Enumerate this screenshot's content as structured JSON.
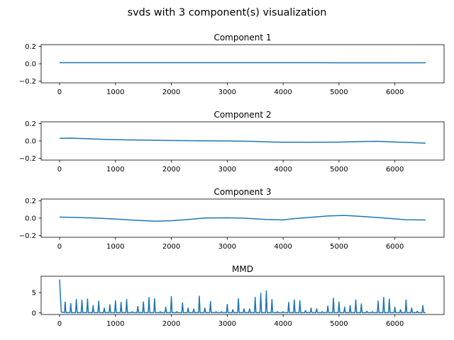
{
  "figure": {
    "title": "svds with 3 component(s) visualization",
    "line_color": "#1f77b4"
  },
  "chart_data": [
    {
      "type": "line",
      "title": "Component 1",
      "xlabel": "",
      "ylabel": "",
      "xlim": [
        -330,
        6880
      ],
      "ylim": [
        -0.22,
        0.22
      ],
      "xticks": [
        0,
        1000,
        2000,
        3000,
        4000,
        5000,
        6000
      ],
      "xtick_labels": [
        "0",
        "1000",
        "2000",
        "3000",
        "4000",
        "5000",
        "6000"
      ],
      "yticks": [
        0.2,
        0.0,
        -0.2
      ],
      "ytick_labels": [
        "0.2",
        "0.0",
        "−0.2"
      ],
      "grid": false,
      "series": [
        {
          "x": [
            0,
            500,
            1000,
            1500,
            2000,
            2500,
            3000,
            3500,
            4000,
            4500,
            5000,
            5500,
            6000,
            6550
          ],
          "values": [
            0.012,
            0.012,
            0.0125,
            0.0125,
            0.0125,
            0.0125,
            0.012,
            0.012,
            0.012,
            0.012,
            0.0115,
            0.0115,
            0.0115,
            0.0115
          ]
        }
      ]
    },
    {
      "type": "line",
      "title": "Component 2",
      "xlabel": "",
      "ylabel": "",
      "xlim": [
        -330,
        6880
      ],
      "ylim": [
        -0.22,
        0.22
      ],
      "xticks": [
        0,
        1000,
        2000,
        3000,
        4000,
        5000,
        6000
      ],
      "xtick_labels": [
        "0",
        "1000",
        "2000",
        "3000",
        "4000",
        "5000",
        "6000"
      ],
      "yticks": [
        0.2,
        0.0,
        -0.2
      ],
      "ytick_labels": [
        "0.2",
        "0.0",
        "−0.2"
      ],
      "grid": false,
      "series": [
        {
          "x": [
            0,
            200,
            500,
            800,
            1200,
            1500,
            2000,
            2500,
            3000,
            3500,
            3800,
            4000,
            4500,
            5000,
            5500,
            5700,
            6000,
            6300,
            6550
          ],
          "values": [
            0.03,
            0.033,
            0.025,
            0.018,
            0.012,
            0.01,
            0.005,
            0.002,
            0.0,
            -0.005,
            -0.012,
            -0.014,
            -0.015,
            -0.013,
            -0.005,
            -0.004,
            -0.012,
            -0.018,
            -0.025
          ]
        }
      ]
    },
    {
      "type": "line",
      "title": "Component 3",
      "xlabel": "",
      "ylabel": "",
      "xlim": [
        -330,
        6880
      ],
      "ylim": [
        -0.22,
        0.22
      ],
      "xticks": [
        0,
        1000,
        2000,
        3000,
        4000,
        5000,
        6000
      ],
      "xtick_labels": [
        "0",
        "1000",
        "2000",
        "3000",
        "4000",
        "5000",
        "6000"
      ],
      "yticks": [
        0.2,
        0.0,
        -0.2
      ],
      "ytick_labels": [
        "0.2",
        "0.0",
        "−0.2"
      ],
      "grid": false,
      "series": [
        {
          "x": [
            0,
            300,
            700,
            1000,
            1400,
            1700,
            2000,
            2300,
            2600,
            3000,
            3300,
            3700,
            4000,
            4200,
            4500,
            4800,
            5100,
            5400,
            5800,
            6200,
            6550
          ],
          "values": [
            0.012,
            0.008,
            0.0,
            -0.01,
            -0.025,
            -0.035,
            -0.03,
            -0.015,
            0.002,
            0.004,
            0.0,
            -0.015,
            -0.02,
            -0.005,
            0.01,
            0.025,
            0.032,
            0.02,
            0.002,
            -0.018,
            -0.02
          ]
        }
      ]
    },
    {
      "type": "line",
      "title": "MMD",
      "xlabel": "",
      "ylabel": "",
      "xlim": [
        -330,
        6880
      ],
      "ylim": [
        -0.4,
        9.0
      ],
      "xticks": [
        0,
        1000,
        2000,
        3000,
        4000,
        5000,
        6000
      ],
      "xtick_labels": [
        "0",
        "1000",
        "2000",
        "3000",
        "4000",
        "5000",
        "6000"
      ],
      "yticks": [
        5,
        0
      ],
      "ytick_labels": [
        "5",
        "0"
      ],
      "grid": false,
      "baseline": 0.05,
      "first_segment": {
        "x": [
          0,
          30
        ],
        "values": [
          8.2,
          0.2
        ]
      },
      "peaks": {
        "x": [
          100,
          200,
          300,
          400,
          500,
          600,
          700,
          800,
          900,
          1000,
          1100,
          1200,
          1300,
          1400,
          1500,
          1600,
          1700,
          1800,
          1900,
          2000,
          2100,
          2200,
          2300,
          2400,
          2500,
          2600,
          2700,
          2800,
          2900,
          3000,
          3100,
          3200,
          3300,
          3400,
          3500,
          3600,
          3700,
          3800,
          3900,
          4000,
          4100,
          4200,
          4300,
          4400,
          4500,
          4600,
          4700,
          4800,
          4900,
          5000,
          5100,
          5200,
          5300,
          5400,
          5500,
          5600,
          5700,
          5800,
          5900,
          6000,
          6100,
          6200,
          6300,
          6400,
          6500
        ],
        "values": [
          2.7,
          2.3,
          3.3,
          3.1,
          3.4,
          1.8,
          2.9,
          1.2,
          2.0,
          3.0,
          2.6,
          3.3,
          0.3,
          1.6,
          2.7,
          3.8,
          3.5,
          0.3,
          1.4,
          4.0,
          0.3,
          2.5,
          1.2,
          1.0,
          4.1,
          1.2,
          2.8,
          0.3,
          0.3,
          2.1,
          0.8,
          3.5,
          1.0,
          1.0,
          3.8,
          4.8,
          5.4,
          3.3,
          0.3,
          0.3,
          2.6,
          3.2,
          3.0,
          0.6,
          1.2,
          1.0,
          0.3,
          1.7,
          3.6,
          2.7,
          1.4,
          1.8,
          3.2,
          2.2,
          0.4,
          0.3,
          2.9,
          3.8,
          3.4,
          1.4,
          0.8,
          3.2,
          1.2,
          0.4,
          1.8
        ]
      }
    }
  ]
}
